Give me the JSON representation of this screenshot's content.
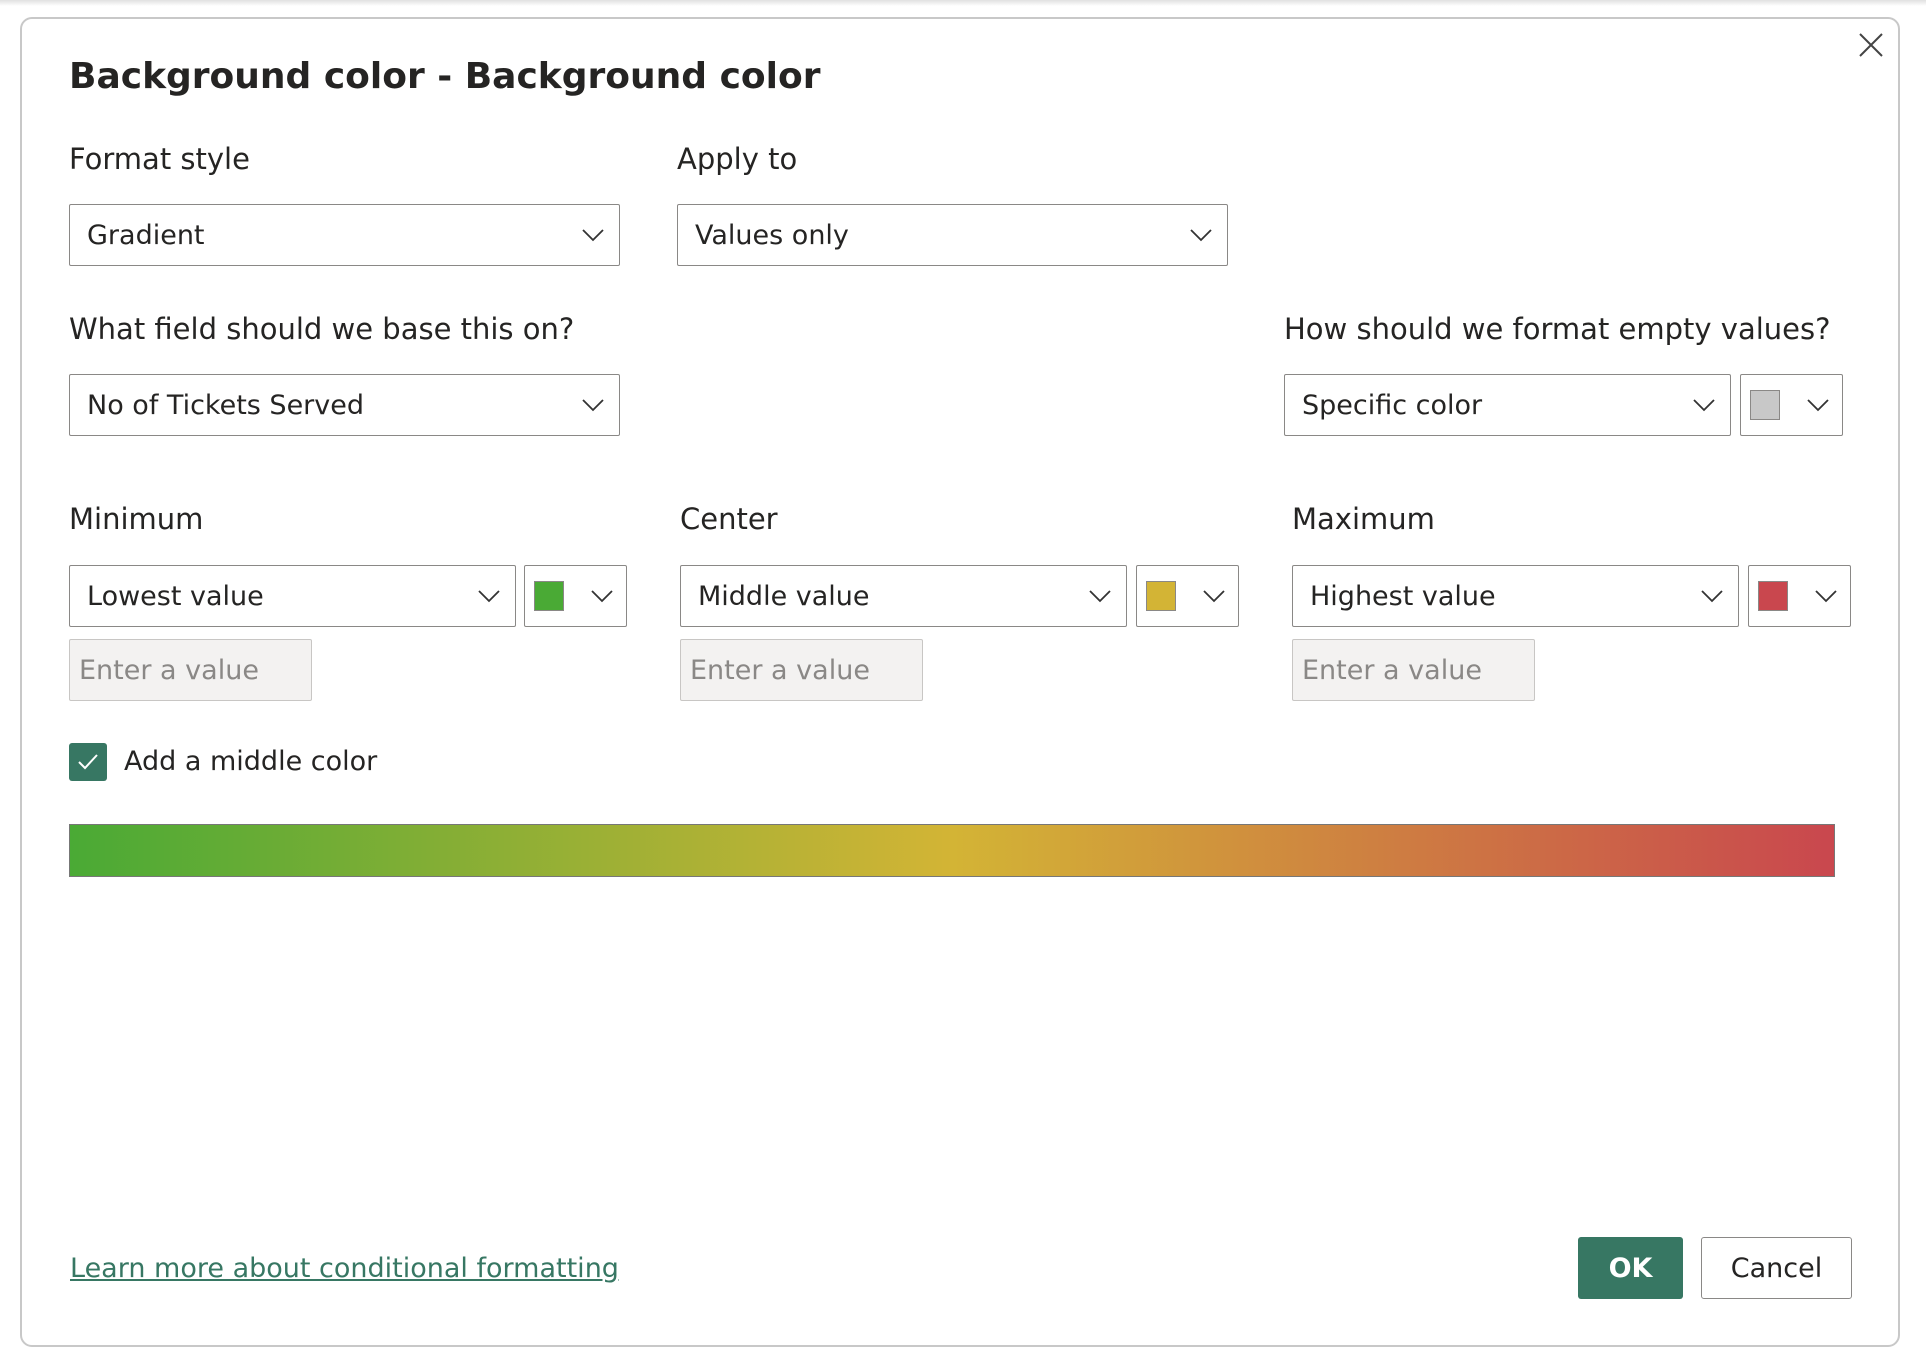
{
  "dialog": {
    "title": "Background color - Background color",
    "close_icon": "close-icon"
  },
  "format_style": {
    "label": "Format style",
    "value": "Gradient"
  },
  "apply_to": {
    "label": "Apply to",
    "value": "Values only"
  },
  "base_field": {
    "label": "What field should we base this on?",
    "value": "No of Tickets Served"
  },
  "empty_values": {
    "label": "How should we format empty values?",
    "value": "Specific color",
    "color": "#c8c8c8"
  },
  "minimum": {
    "label": "Minimum",
    "value": "Lowest value",
    "color": "#4aaa35",
    "placeholder": "Enter a value"
  },
  "center": {
    "label": "Center",
    "value": "Middle value",
    "color": "#d3b435",
    "placeholder": "Enter a value"
  },
  "maximum": {
    "label": "Maximum",
    "value": "Highest value",
    "color": "#c9474e",
    "placeholder": "Enter a value"
  },
  "middle_color": {
    "label": "Add a middle color",
    "checked": true
  },
  "footer": {
    "learn_more": "Learn more about conditional formatting",
    "ok": "OK",
    "cancel": "Cancel"
  },
  "accent_color": "#377763"
}
